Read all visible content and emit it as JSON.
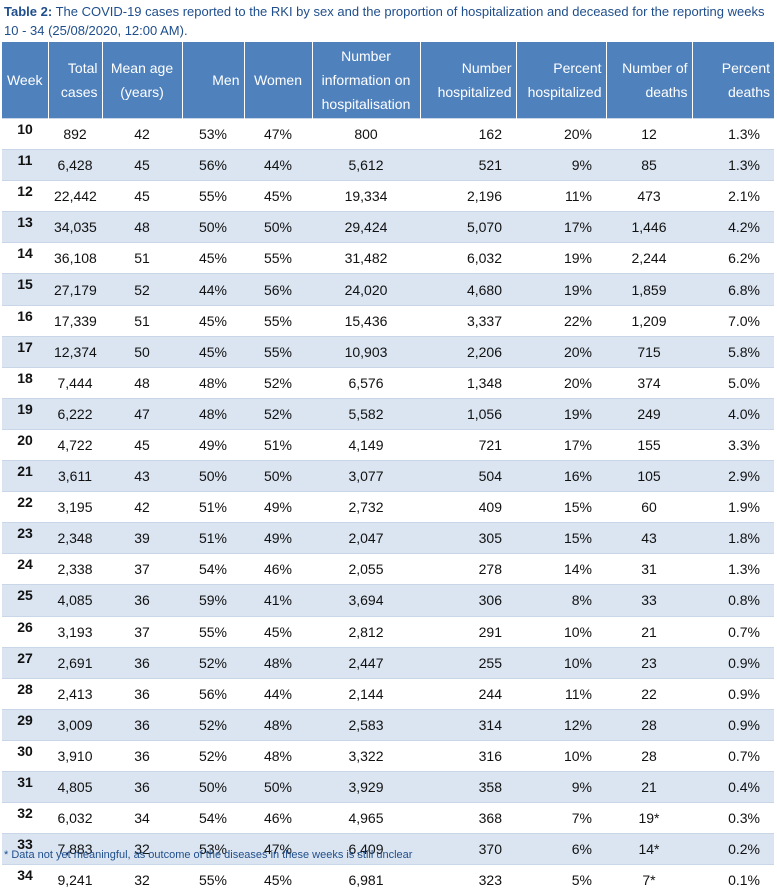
{
  "caption": {
    "label": "Table 2:",
    "text": "The COVID-19 cases reported to the RKI by sex and the proportion of hospitalization and deceased for the reporting weeks 10 - 34 (25/08/2020, 12:00 AM)."
  },
  "table": {
    "headers": [
      "Week",
      "Total cases",
      "Mean age (years)",
      "Men",
      "Women",
      "Number information on hospitalisation",
      "Number hospitalized",
      "Percent hospitalized",
      "Number of deaths",
      "Percent deaths"
    ],
    "rows": [
      [
        "10",
        "892",
        "42",
        "53%",
        "47%",
        "800",
        "162",
        "20%",
        "12",
        "1.3%"
      ],
      [
        "11",
        "6,428",
        "45",
        "56%",
        "44%",
        "5,612",
        "521",
        "9%",
        "85",
        "1.3%"
      ],
      [
        "12",
        "22,442",
        "45",
        "55%",
        "45%",
        "19,334",
        "2,196",
        "11%",
        "473",
        "2.1%"
      ],
      [
        "13",
        "34,035",
        "48",
        "50%",
        "50%",
        "29,424",
        "5,070",
        "17%",
        "1,446",
        "4.2%"
      ],
      [
        "14",
        "36,108",
        "51",
        "45%",
        "55%",
        "31,482",
        "6,032",
        "19%",
        "2,244",
        "6.2%"
      ],
      [
        "15",
        "27,179",
        "52",
        "44%",
        "56%",
        "24,020",
        "4,680",
        "19%",
        "1,859",
        "6.8%"
      ],
      [
        "16",
        "17,339",
        "51",
        "45%",
        "55%",
        "15,436",
        "3,337",
        "22%",
        "1,209",
        "7.0%"
      ],
      [
        "17",
        "12,374",
        "50",
        "45%",
        "55%",
        "10,903",
        "2,206",
        "20%",
        "715",
        "5.8%"
      ],
      [
        "18",
        "7,444",
        "48",
        "48%",
        "52%",
        "6,576",
        "1,348",
        "20%",
        "374",
        "5.0%"
      ],
      [
        "19",
        "6,222",
        "47",
        "48%",
        "52%",
        "5,582",
        "1,056",
        "19%",
        "249",
        "4.0%"
      ],
      [
        "20",
        "4,722",
        "45",
        "49%",
        "51%",
        "4,149",
        "721",
        "17%",
        "155",
        "3.3%"
      ],
      [
        "21",
        "3,611",
        "43",
        "50%",
        "50%",
        "3,077",
        "504",
        "16%",
        "105",
        "2.9%"
      ],
      [
        "22",
        "3,195",
        "42",
        "51%",
        "49%",
        "2,732",
        "409",
        "15%",
        "60",
        "1.9%"
      ],
      [
        "23",
        "2,348",
        "39",
        "51%",
        "49%",
        "2,047",
        "305",
        "15%",
        "43",
        "1.8%"
      ],
      [
        "24",
        "2,338",
        "37",
        "54%",
        "46%",
        "2,055",
        "278",
        "14%",
        "31",
        "1.3%"
      ],
      [
        "25",
        "4,085",
        "36",
        "59%",
        "41%",
        "3,694",
        "306",
        "8%",
        "33",
        "0.8%"
      ],
      [
        "26",
        "3,193",
        "37",
        "55%",
        "45%",
        "2,812",
        "291",
        "10%",
        "21",
        "0.7%"
      ],
      [
        "27",
        "2,691",
        "36",
        "52%",
        "48%",
        "2,447",
        "255",
        "10%",
        "23",
        "0.9%"
      ],
      [
        "28",
        "2,413",
        "36",
        "56%",
        "44%",
        "2,144",
        "244",
        "11%",
        "22",
        "0.9%"
      ],
      [
        "29",
        "3,009",
        "36",
        "52%",
        "48%",
        "2,583",
        "314",
        "12%",
        "28",
        "0.9%"
      ],
      [
        "30",
        "3,910",
        "36",
        "52%",
        "48%",
        "3,322",
        "316",
        "10%",
        "28",
        "0.7%"
      ],
      [
        "31",
        "4,805",
        "36",
        "50%",
        "50%",
        "3,929",
        "358",
        "9%",
        "21",
        "0.4%"
      ],
      [
        "32",
        "6,032",
        "34",
        "54%",
        "46%",
        "4,965",
        "368",
        "7%",
        "19*",
        "0.3%"
      ],
      [
        "33",
        "7,883",
        "32",
        "53%",
        "47%",
        "6,409",
        "370",
        "6%",
        "14*",
        "0.2%"
      ],
      [
        "34",
        "9,241",
        "32",
        "55%",
        "45%",
        "6,981",
        "323",
        "5%",
        "7*",
        "0.1%"
      ]
    ]
  },
  "footnote": "* Data not yet meaningful, as outcome of the diseases in these weeks is still unclear"
}
